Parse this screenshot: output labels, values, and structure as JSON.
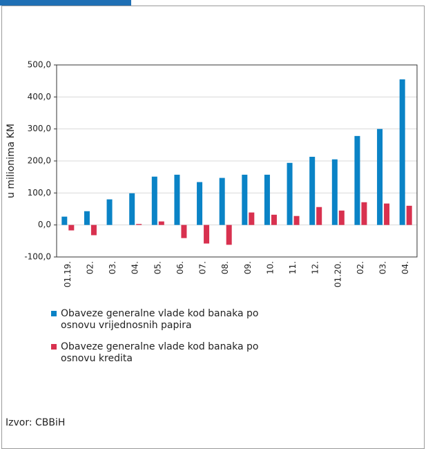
{
  "chart_data": {
    "type": "bar",
    "y_label": "u milionima KM",
    "categories": [
      "01.19.",
      "02.",
      "03.",
      "04.",
      "05.",
      "06.",
      "07.",
      "08.",
      "09.",
      "10.",
      "11.",
      "12.",
      "01.20.",
      "02.",
      "03.",
      "04."
    ],
    "series": [
      {
        "name": "Obaveze generalne vlade kod banaka po osnovu vrijednosnih papira",
        "color": "#0a83c6",
        "values": [
          26,
          43,
          80,
          99,
          151,
          157,
          134,
          147,
          157,
          157,
          194,
          213,
          205,
          278,
          300,
          455
        ]
      },
      {
        "name": "Obaveze generalne vlade kod banaka po osnovu kredita",
        "color": "#d8314f",
        "values": [
          -17,
          -32,
          0,
          3,
          11,
          -41,
          -58,
          -62,
          39,
          32,
          28,
          56,
          45,
          71,
          67,
          60
        ]
      }
    ],
    "ylim": [
      -100,
      500
    ],
    "yticks": [
      {
        "value": -100,
        "label": "-100,0"
      },
      {
        "value": 0,
        "label": "0,0"
      },
      {
        "value": 100,
        "label": "100,0"
      },
      {
        "value": 200,
        "label": "200,0"
      },
      {
        "value": 300,
        "label": "300,0"
      },
      {
        "value": 400,
        "label": "400,0"
      },
      {
        "value": 500,
        "label": "500,0"
      }
    ],
    "grid": true,
    "source": "Izvor: CBBiH"
  }
}
